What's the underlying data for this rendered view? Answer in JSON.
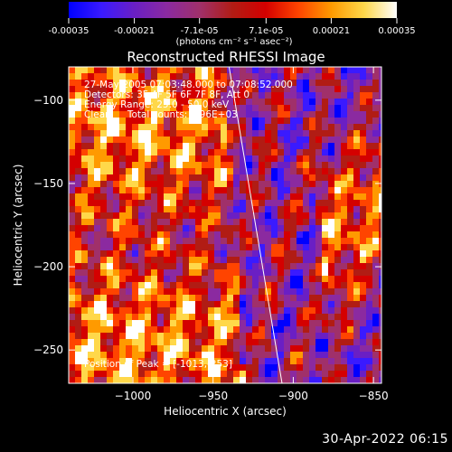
{
  "colorbar": {
    "tick_labels": [
      "-0.00035",
      "-0.00021",
      "-7.1e-05",
      "7.1e-05",
      "0.00021",
      "0.00035"
    ],
    "tick_values": [
      -0.00035,
      -0.00021,
      -7.1e-05,
      7.1e-05,
      0.00021,
      0.00035
    ],
    "range": [
      -0.00035,
      0.00035
    ],
    "unit_label": "(photons cm⁻² s⁻¹ asec⁻²)",
    "colors": [
      "#0000ff",
      "#3a1aff",
      "#6a1fc4",
      "#8b2aa0",
      "#a0306a",
      "#b11c14",
      "#d40000",
      "#ff4400",
      "#ff9a00",
      "#ffd84a",
      "#ffffff"
    ]
  },
  "chart_data": {
    "type": "heatmap",
    "title": "Reconstructed RHESSI Image",
    "xlabel": "Heliocentric X (arcsec)",
    "ylabel": "Heliocentric Y (arcsec)",
    "xlim": [
      -1040,
      -845
    ],
    "ylim": [
      -270,
      -80
    ],
    "x_ticks": [
      -1000,
      -950,
      -900,
      -850
    ],
    "x_tick_labels": [
      "−1000",
      "−950",
      "−900",
      "−850"
    ],
    "y_ticks": [
      -250,
      -200,
      -150,
      -100
    ],
    "y_tick_labels": [
      "−250",
      "−200",
      "−150",
      "−100"
    ],
    "limb_line": [
      [
        -940,
        -80
      ],
      [
        -907,
        -270
      ]
    ],
    "peak_position": [
      -1013,
      -253
    ]
  },
  "overlay": {
    "time_range": "27-May-2005 07:03:48.000 to 07:08:52.000",
    "detectors": "Detectors: 3F 4F 5F 6F 7F 8F, Att 0",
    "energy": "Energy Range: 25.0 - 50.0 keV",
    "method": "Clean",
    "total_counts": "Total counts: 4.96E+03",
    "peak": "Position of Peak = [-1013,-253]"
  },
  "footer": {
    "date": "30-Apr-2022 06:15"
  }
}
